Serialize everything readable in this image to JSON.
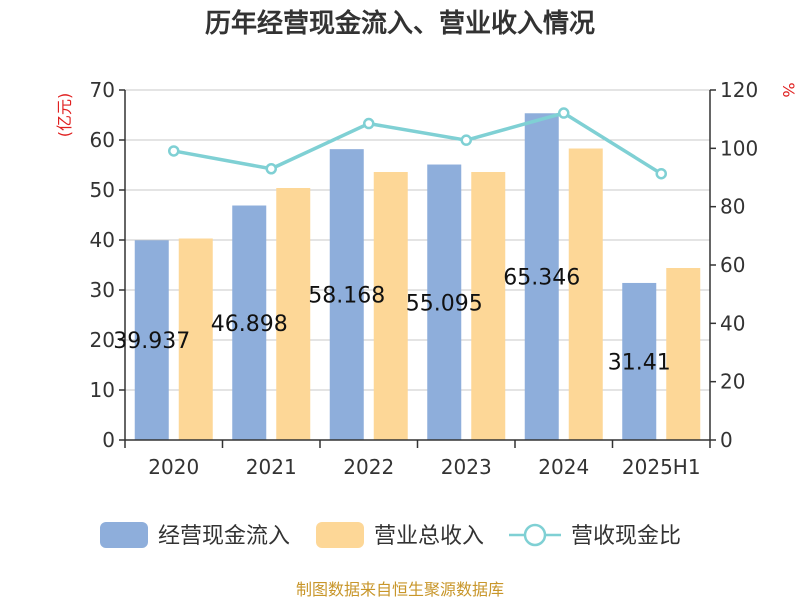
{
  "chart_data": {
    "type": "bar",
    "title": "历年经营现金流入、营业收入情况",
    "categories": [
      "2020",
      "2021",
      "2022",
      "2023",
      "2024",
      "2025H1"
    ],
    "series": [
      {
        "name": "经营现金流入",
        "type": "bar",
        "axis": "left",
        "color": "#8eaedb",
        "values": [
          39.937,
          46.898,
          58.168,
          55.095,
          65.346,
          31.41
        ],
        "labels": [
          "39.937",
          "46.898",
          "58.168",
          "55.095",
          "65.346",
          "31.41"
        ]
      },
      {
        "name": "营业总收入",
        "type": "bar",
        "axis": "left",
        "color": "#fdd797",
        "values": [
          40.3,
          50.4,
          53.6,
          53.6,
          58.3,
          34.4
        ]
      },
      {
        "name": "营收现金比",
        "type": "line",
        "axis": "right",
        "color": "#7fd0d4",
        "values": [
          99.1,
          93.0,
          108.5,
          102.8,
          112.1,
          91.3
        ]
      }
    ],
    "left_axis": {
      "label": "(亿元)",
      "ylim": [
        0,
        70
      ],
      "ticks": [
        0,
        10,
        20,
        30,
        40,
        50,
        60,
        70
      ]
    },
    "right_axis": {
      "label": "%",
      "ylim": [
        0,
        120
      ],
      "ticks": [
        0,
        20,
        40,
        60,
        80,
        100,
        120
      ]
    },
    "grid": true,
    "legend_position": "bottom"
  },
  "source_note": "制图数据来自恒生聚源数据库"
}
